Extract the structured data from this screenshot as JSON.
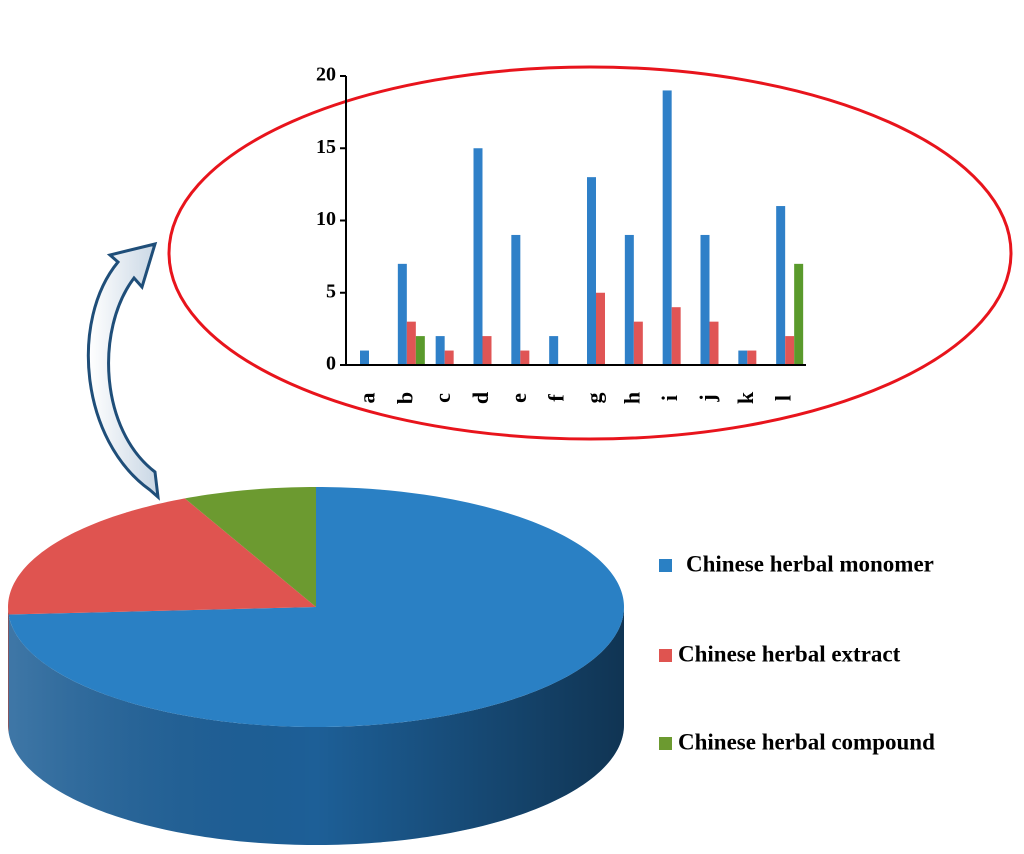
{
  "chart_data": [
    {
      "type": "bar",
      "categories": [
        "a",
        "b",
        "c",
        "d",
        "e",
        "f",
        "g",
        "h",
        "i",
        "j",
        "k",
        "l"
      ],
      "series": [
        {
          "color": "#2f80c8",
          "values": [
            1,
            7,
            2,
            15,
            9,
            2,
            13,
            9,
            19,
            9,
            1,
            11
          ]
        },
        {
          "color": "#e05555",
          "values": [
            0,
            3,
            1,
            2,
            1,
            0,
            5,
            3,
            4,
            3,
            1,
            2
          ]
        },
        {
          "color": "#5a9a2c",
          "values": [
            0,
            2,
            0,
            0,
            0,
            0,
            0,
            0,
            0,
            0,
            0,
            7
          ]
        }
      ],
      "ylim": [
        0,
        20
      ],
      "yticks": [
        0,
        5,
        10,
        15,
        20
      ]
    },
    {
      "type": "pie",
      "categories": [
        "Chinese herbal monomer",
        "Chinese herbal extract",
        "Chinese herbal compound"
      ],
      "values": [
        74,
        19,
        7
      ],
      "colors": [
        "#2a80c4",
        "#df5450",
        "#6c9a30"
      ],
      "side_colors": [
        "#1d5f97",
        "#a33a37",
        "#4e7322"
      ]
    }
  ]
}
